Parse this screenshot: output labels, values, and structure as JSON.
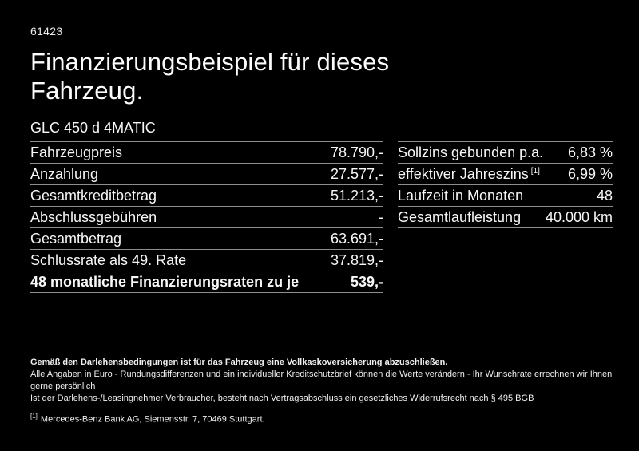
{
  "colors": {
    "background": "#000000",
    "text": "#f5f5f5",
    "divider": "#8e8e8e"
  },
  "header": {
    "ref_number": "61423",
    "title_line1": "Finanzierungsbeispiel für dieses",
    "title_line2": "Fahrzeug.",
    "model": "GLC 450 d 4MATIC"
  },
  "finance_table": {
    "rows": [
      {
        "label": "Fahrzeugpreis",
        "value": "78.790,-"
      },
      {
        "label": "Anzahlung",
        "value": "27.577,-"
      },
      {
        "label": "Gesamtkreditbetrag",
        "value": "51.213,-"
      },
      {
        "label": "Abschlussgebühren",
        "value": "-"
      },
      {
        "label": "Gesamtbetrag",
        "value": "63.691,-"
      },
      {
        "label": "Schlussrate als 49. Rate",
        "value": "37.819,-"
      },
      {
        "label": "48 monatliche Finanzierungsraten zu je",
        "value": "539,-"
      }
    ]
  },
  "conditions_table": {
    "rows": [
      {
        "label": "Sollzins gebunden p.a.",
        "value": "6,83 %"
      },
      {
        "label": "effektiver Jahreszins",
        "footnote_marker": "[1]",
        "value": "6,99 %"
      },
      {
        "label": "Laufzeit in Monaten",
        "value": "48"
      },
      {
        "label": "Gesamtlaufleistung",
        "value": "40.000 km"
      }
    ]
  },
  "footer": {
    "insurance_note": "Gemäß den Darlehensbedingungen ist für das Fahrzeug eine Vollkaskoversicherung abzuschließen.",
    "note_rounding": "Alle Angaben in Euro - Rundungsdifferenzen und ein individueller Kreditschutzbrief können die Werte verändern - Ihr Wunschrate errechnen wir Ihnen gerne persönlich",
    "note_withdrawal": "Ist der Darlehens-/Leasingnehmer Verbraucher, besteht nach Vertragsabschluss ein gesetzliches Widerrufsrecht nach § 495 BGB",
    "footnote_marker": "[1]",
    "footnote_text": "Mercedes-Benz Bank AG, Siemensstr. 7, 70469 Stuttgart."
  }
}
